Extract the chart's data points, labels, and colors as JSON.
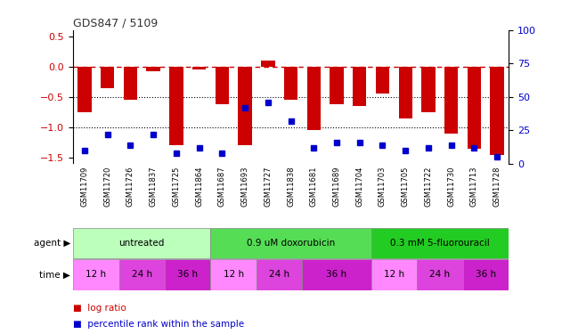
{
  "title": "GDS847 / 5109",
  "samples": [
    "GSM11709",
    "GSM11720",
    "GSM11726",
    "GSM11837",
    "GSM11725",
    "GSM11864",
    "GSM11687",
    "GSM11693",
    "GSM11727",
    "GSM11838",
    "GSM11681",
    "GSM11689",
    "GSM11704",
    "GSM11703",
    "GSM11705",
    "GSM11722",
    "GSM11730",
    "GSM11713",
    "GSM11728"
  ],
  "log_ratio": [
    -0.75,
    -0.35,
    -0.55,
    -0.08,
    -1.3,
    -0.05,
    -0.62,
    -1.3,
    0.1,
    -0.55,
    -1.05,
    -0.62,
    -0.65,
    -0.45,
    -0.85,
    -0.75,
    -1.1,
    -1.35,
    -1.45
  ],
  "pct_rank": [
    10,
    22,
    14,
    22,
    8,
    12,
    8,
    42,
    46,
    32,
    12,
    16,
    16,
    14,
    10,
    12,
    14,
    12,
    5
  ],
  "bar_color": "#cc0000",
  "dot_color": "#0000cc",
  "ref_line_color": "#cc0000",
  "dotted_line_color": "#000000",
  "ylim_left": [
    -1.6,
    0.6
  ],
  "ylim_right": [
    0,
    100
  ],
  "yticks_left": [
    0.5,
    0.0,
    -0.5,
    -1.0,
    -1.5
  ],
  "yticks_right": [
    100,
    75,
    50,
    25,
    0
  ],
  "agent_groups": [
    {
      "label": "untreated",
      "start": 0,
      "end": 5,
      "color": "#bbffbb"
    },
    {
      "label": "0.9 uM doxorubicin",
      "start": 6,
      "end": 12,
      "color": "#55dd55"
    },
    {
      "label": "0.3 mM 5-fluorouracil",
      "start": 13,
      "end": 18,
      "color": "#22cc22"
    }
  ],
  "time_groups": [
    {
      "label": "12 h",
      "start": 0,
      "end": 1,
      "color": "#ff88ff"
    },
    {
      "label": "24 h",
      "start": 2,
      "end": 3,
      "color": "#dd44dd"
    },
    {
      "label": "36 h",
      "start": 4,
      "end": 5,
      "color": "#cc22cc"
    },
    {
      "label": "12 h",
      "start": 6,
      "end": 7,
      "color": "#ff88ff"
    },
    {
      "label": "24 h",
      "start": 8,
      "end": 9,
      "color": "#dd44dd"
    },
    {
      "label": "36 h",
      "start": 10,
      "end": 12,
      "color": "#cc22cc"
    },
    {
      "label": "12 h",
      "start": 13,
      "end": 14,
      "color": "#ff88ff"
    },
    {
      "label": "24 h",
      "start": 15,
      "end": 16,
      "color": "#dd44dd"
    },
    {
      "label": "36 h",
      "start": 17,
      "end": 18,
      "color": "#cc22cc"
    }
  ],
  "legend_items": [
    {
      "label": "log ratio",
      "color": "#cc0000"
    },
    {
      "label": "percentile rank within the sample",
      "color": "#0000cc"
    }
  ],
  "bg_color": "#ffffff",
  "sample_bg": "#cccccc"
}
